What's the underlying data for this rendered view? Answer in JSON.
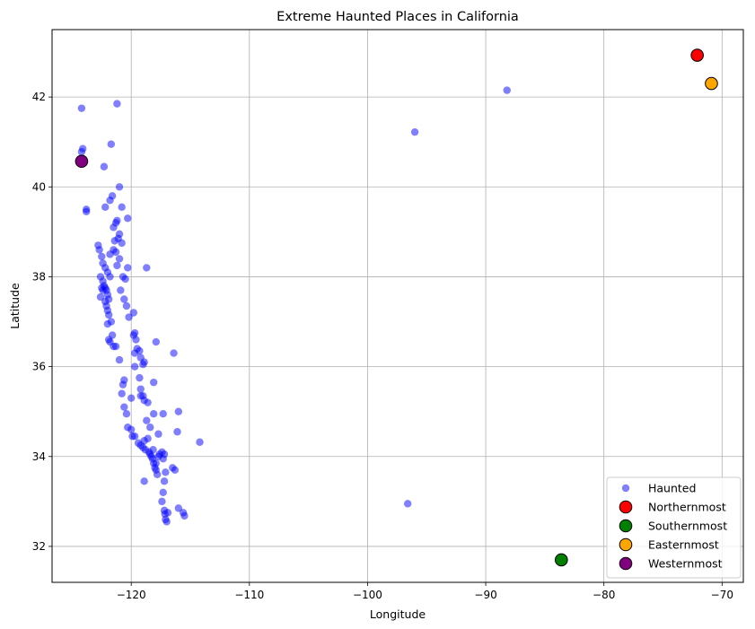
{
  "chart_data": {
    "type": "scatter",
    "title": "Extreme Haunted Places in California",
    "xlabel": "Longitude",
    "ylabel": "Latitude",
    "xlim": [
      -126.7,
      -68.2
    ],
    "ylim": [
      31.2,
      43.5
    ],
    "xticks": [
      -120,
      -110,
      -100,
      -90,
      -80,
      -70
    ],
    "yticks": [
      32,
      34,
      36,
      38,
      40,
      42
    ],
    "grid": true,
    "legend_position": "lower right",
    "series": [
      {
        "name": "Haunted",
        "marker_color": "#0000ff",
        "alpha": 0.5,
        "points": [
          [
            -124.2,
            41.75
          ],
          [
            -121.2,
            41.85
          ],
          [
            -121.7,
            40.95
          ],
          [
            -124.1,
            40.85
          ],
          [
            -124.2,
            40.78
          ],
          [
            -122.3,
            40.45
          ],
          [
            -121.0,
            40.0
          ],
          [
            -121.6,
            39.8
          ],
          [
            -121.8,
            39.7
          ],
          [
            -120.8,
            39.55
          ],
          [
            -122.2,
            39.55
          ],
          [
            -120.3,
            39.3
          ],
          [
            -123.8,
            39.45
          ],
          [
            -123.8,
            39.5
          ],
          [
            -121.2,
            39.25
          ],
          [
            -121.3,
            39.2
          ],
          [
            -121.5,
            39.1
          ],
          [
            -121.0,
            38.95
          ],
          [
            -121.1,
            38.85
          ],
          [
            -121.4,
            38.8
          ],
          [
            -120.8,
            38.75
          ],
          [
            -121.5,
            38.6
          ],
          [
            -121.3,
            38.55
          ],
          [
            -121.8,
            38.5
          ],
          [
            -121.0,
            38.4
          ],
          [
            -122.8,
            38.7
          ],
          [
            -122.7,
            38.6
          ],
          [
            -122.5,
            38.45
          ],
          [
            -122.4,
            38.3
          ],
          [
            -122.2,
            38.2
          ],
          [
            -122.0,
            38.1
          ],
          [
            -121.8,
            38.0
          ],
          [
            -122.6,
            38.0
          ],
          [
            -122.4,
            37.9
          ],
          [
            -122.3,
            37.8
          ],
          [
            -122.2,
            37.75
          ],
          [
            -122.1,
            37.7
          ],
          [
            -122.0,
            37.6
          ],
          [
            -121.9,
            37.5
          ],
          [
            -122.5,
            37.75
          ],
          [
            -122.4,
            37.7
          ],
          [
            -122.6,
            37.55
          ],
          [
            -122.2,
            37.45
          ],
          [
            -122.1,
            37.35
          ],
          [
            -122.0,
            37.25
          ],
          [
            -121.9,
            37.15
          ],
          [
            -121.7,
            37.0
          ],
          [
            -122.0,
            36.95
          ],
          [
            -121.9,
            36.6
          ],
          [
            -121.8,
            36.55
          ],
          [
            -121.6,
            36.7
          ],
          [
            -121.5,
            36.45
          ],
          [
            -121.3,
            36.45
          ],
          [
            -121.0,
            36.15
          ],
          [
            -120.7,
            38.0
          ],
          [
            -120.5,
            37.95
          ],
          [
            -120.6,
            37.5
          ],
          [
            -120.4,
            37.35
          ],
          [
            -120.2,
            37.1
          ],
          [
            -119.8,
            37.2
          ],
          [
            -119.7,
            36.75
          ],
          [
            -119.8,
            36.7
          ],
          [
            -119.6,
            36.6
          ],
          [
            -119.5,
            36.4
          ],
          [
            -119.7,
            36.3
          ],
          [
            -119.3,
            36.35
          ],
          [
            -119.2,
            36.2
          ],
          [
            -119.0,
            36.05
          ],
          [
            -118.9,
            36.1
          ],
          [
            -117.9,
            36.55
          ],
          [
            -116.4,
            36.3
          ],
          [
            -119.3,
            35.75
          ],
          [
            -119.2,
            35.5
          ],
          [
            -119.0,
            35.35
          ],
          [
            -118.9,
            35.25
          ],
          [
            -119.2,
            35.35
          ],
          [
            -118.1,
            35.65
          ],
          [
            -118.6,
            35.2
          ],
          [
            -118.1,
            34.95
          ],
          [
            -117.3,
            34.95
          ],
          [
            -116.0,
            35.0
          ],
          [
            -116.1,
            34.55
          ],
          [
            -114.2,
            34.32
          ],
          [
            -120.6,
            35.7
          ],
          [
            -120.7,
            35.6
          ],
          [
            -120.8,
            35.4
          ],
          [
            -120.6,
            35.1
          ],
          [
            -120.4,
            34.95
          ],
          [
            -120.3,
            34.65
          ],
          [
            -119.9,
            34.45
          ],
          [
            -119.7,
            34.45
          ],
          [
            -119.4,
            34.3
          ],
          [
            -119.2,
            34.25
          ],
          [
            -119.0,
            34.2
          ],
          [
            -118.8,
            34.15
          ],
          [
            -118.6,
            34.4
          ],
          [
            -118.5,
            34.1
          ],
          [
            -118.4,
            34.05
          ],
          [
            -118.3,
            34.0
          ],
          [
            -118.2,
            33.95
          ],
          [
            -118.15,
            34.15
          ],
          [
            -118.1,
            33.85
          ],
          [
            -118.0,
            33.75
          ],
          [
            -117.9,
            33.7
          ],
          [
            -117.8,
            33.6
          ],
          [
            -117.7,
            34.0
          ],
          [
            -117.6,
            34.05
          ],
          [
            -117.4,
            34.1
          ],
          [
            -117.3,
            33.95
          ],
          [
            -117.2,
            34.05
          ],
          [
            -117.1,
            33.65
          ],
          [
            -117.2,
            33.45
          ],
          [
            -117.3,
            33.2
          ],
          [
            -117.4,
            33.0
          ],
          [
            -117.2,
            32.8
          ],
          [
            -117.15,
            32.72
          ],
          [
            -117.1,
            32.6
          ],
          [
            -117.0,
            32.55
          ],
          [
            -116.9,
            32.75
          ],
          [
            -116.5,
            33.75
          ],
          [
            -116.3,
            33.7
          ],
          [
            -116.0,
            32.85
          ],
          [
            -115.6,
            32.75
          ],
          [
            -115.5,
            32.68
          ],
          [
            -118.7,
            34.8
          ],
          [
            -118.9,
            33.45
          ],
          [
            -120.0,
            35.3
          ],
          [
            -120.0,
            34.6
          ],
          [
            -118.4,
            34.65
          ],
          [
            -117.7,
            34.5
          ],
          [
            -120.3,
            38.2
          ],
          [
            -118.7,
            38.2
          ],
          [
            -121.2,
            38.25
          ],
          [
            -120.9,
            37.7
          ],
          [
            -119.7,
            36.0
          ],
          [
            -118.9,
            34.35
          ],
          [
            -117.9,
            33.85
          ],
          [
            -96.0,
            41.22
          ],
          [
            -88.2,
            42.15
          ],
          [
            -96.6,
            32.95
          ]
        ]
      },
      {
        "name": "Northernmost",
        "marker_color": "#ff0000",
        "points": [
          [
            -72.1,
            42.93
          ]
        ]
      },
      {
        "name": "Southernmost",
        "marker_color": "#008000",
        "points": [
          [
            -83.6,
            31.7
          ]
        ]
      },
      {
        "name": "Easternmost",
        "marker_color": "#ffa500",
        "points": [
          [
            -70.9,
            42.3
          ]
        ]
      },
      {
        "name": "Westernmost",
        "marker_color": "#800080",
        "points": [
          [
            -124.2,
            40.57
          ]
        ]
      }
    ]
  }
}
